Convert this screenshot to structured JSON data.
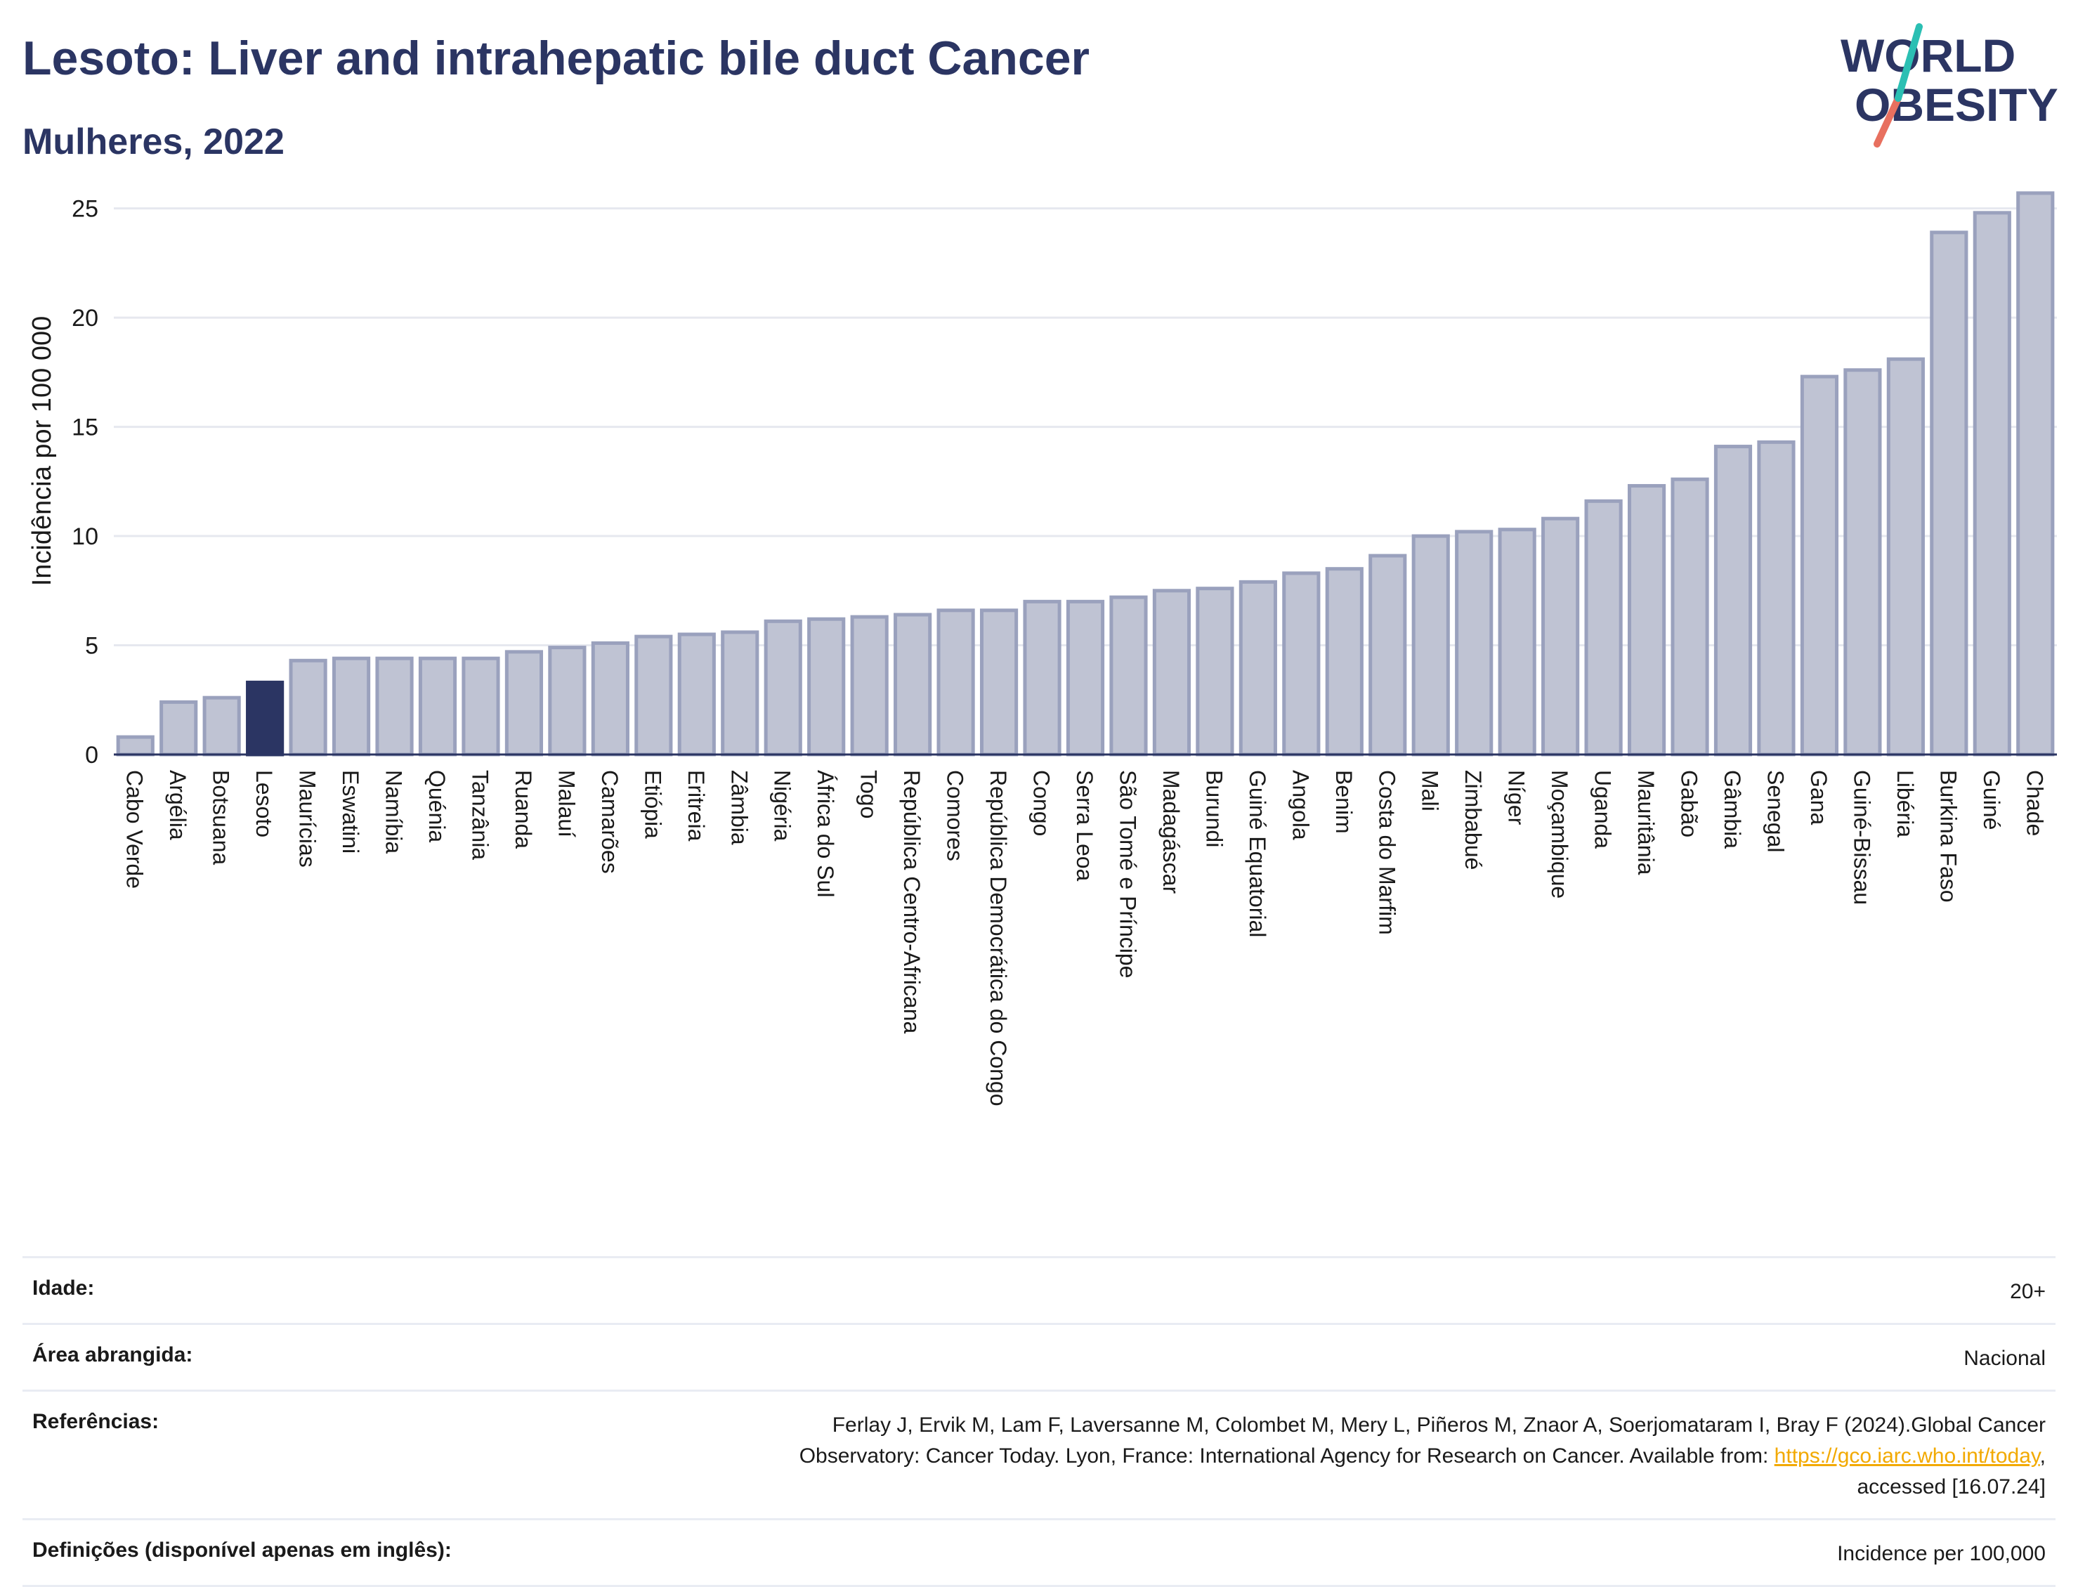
{
  "header": {
    "title": "Lesoto: Liver and intrahepatic bile duct Cancer",
    "subtitle": "Mulheres, 2022"
  },
  "logo": {
    "line1": "WORLD",
    "line2": "OBESITY"
  },
  "colors": {
    "bar": "#bfc3d3",
    "bar_stroke": "#9aa1bd",
    "highlight": "#2b3563",
    "grid": "#e6e8ef",
    "logo_teal": "#2bbfb3",
    "logo_coral": "#e8705f"
  },
  "chart_data": {
    "type": "bar",
    "ylabel": "Incidência por 100 000",
    "ylim": [
      0,
      26.5
    ],
    "yticks": [
      0,
      5,
      10,
      15,
      20,
      25
    ],
    "grid": true,
    "highlight": "Lesoto",
    "categories": [
      "Cabo Verde",
      "Argélia",
      "Botsuana",
      "Lesoto",
      "Maurícias",
      "Eswatini",
      "Namíbia",
      "Quénia",
      "Tanzânia",
      "Ruanda",
      "Malauí",
      "Camarões",
      "Etiópia",
      "Eritreia",
      "Zâmbia",
      "Nigéria",
      "África do Sul",
      "Togo",
      "República Centro-Africana",
      "Comores",
      "República Democrática do Congo",
      "Congo",
      "Serra Leoa",
      "São Tomé e Príncipe",
      "Madagáscar",
      "Burundi",
      "Guiné Equatorial",
      "Angola",
      "Benim",
      "Costa do Marfim",
      "Mali",
      "Zimbabué",
      "Níger",
      "Moçambique",
      "Uganda",
      "Mauritânia",
      "Gabão",
      "Gâmbia",
      "Senegal",
      "Gana",
      "Guiné-Bissau",
      "Libéria",
      "Burkina Faso",
      "Guiné",
      "Chade"
    ],
    "values": [
      0.8,
      2.4,
      2.6,
      3.3,
      4.3,
      4.4,
      4.4,
      4.4,
      4.4,
      4.7,
      4.9,
      5.1,
      5.4,
      5.5,
      5.6,
      6.1,
      6.2,
      6.3,
      6.4,
      6.6,
      6.6,
      7.0,
      7.0,
      7.2,
      7.5,
      7.6,
      7.9,
      8.3,
      8.5,
      9.1,
      10.0,
      10.2,
      10.3,
      10.8,
      11.6,
      12.3,
      12.6,
      14.1,
      14.3,
      17.3,
      17.6,
      18.1,
      23.9,
      24.8,
      25.7
    ]
  },
  "footer": {
    "rows": [
      {
        "label": "Idade:",
        "value": "20+"
      },
      {
        "label": "Área abrangida:",
        "value": "Nacional"
      },
      {
        "label": "Referências:",
        "value_line1": "Ferlay J, Ervik M, Lam F, Laversanne M, Colombet M, Mery L, Piñeros M, Znaor A, Soerjomataram I, Bray F (2024).Global Cancer",
        "value_line2_pre": "Observatory: Cancer Today. Lyon, France: International Agency for Research on Cancer. Available from: ",
        "value_link": "https://gco.iarc.who.int/today",
        "value_line2_post": ",",
        "value_line3": "accessed [16.07.24]"
      },
      {
        "label": "Definições (disponível apenas em inglês):",
        "value": "Incidence per 100,000"
      }
    ]
  }
}
